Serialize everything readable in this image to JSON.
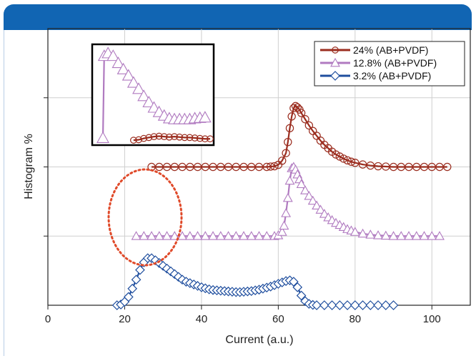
{
  "chart_data": {
    "type": "line",
    "title": "",
    "xlabel": "Current (a.u.)",
    "ylabel": "Histogram %",
    "xlim": [
      0,
      110
    ],
    "xticks": [
      "0",
      "20",
      "40",
      "60",
      "80",
      "100"
    ],
    "yticks_labeled": false,
    "grid": true,
    "legend_position": "top-right",
    "inset": true,
    "inset_position": "top-left",
    "annotation": "dotted red circle around the low-current region (x≈20–30)",
    "series": [
      {
        "name": "3.2% (AB+PVDF)",
        "color": "#1f4e9e",
        "marker": "diamond",
        "points": [
          [
            18,
            0.0
          ],
          [
            19,
            0.1
          ],
          [
            20,
            0.5
          ],
          [
            21,
            1.2
          ],
          [
            22,
            2.4
          ],
          [
            23,
            3.7
          ],
          [
            24,
            5.1
          ],
          [
            25,
            6.2
          ],
          [
            26,
            6.8
          ],
          [
            27,
            6.8
          ],
          [
            28,
            6.5
          ],
          [
            29,
            6.1
          ],
          [
            30,
            5.7
          ],
          [
            31,
            5.3
          ],
          [
            32,
            4.9
          ],
          [
            33,
            4.5
          ],
          [
            34,
            4.1
          ],
          [
            35,
            3.7
          ],
          [
            36,
            3.4
          ],
          [
            37,
            3.2
          ],
          [
            38,
            3.0
          ],
          [
            39,
            2.8
          ],
          [
            40,
            2.6
          ],
          [
            41,
            2.45
          ],
          [
            42,
            2.3
          ],
          [
            43,
            2.2
          ],
          [
            44,
            2.15
          ],
          [
            45,
            2.1
          ],
          [
            46,
            2.05
          ],
          [
            47,
            2.0
          ],
          [
            48,
            1.95
          ],
          [
            49,
            1.9
          ],
          [
            50,
            1.9
          ],
          [
            51,
            1.95
          ],
          [
            52,
            2.0
          ],
          [
            53,
            2.05
          ],
          [
            54,
            2.15
          ],
          [
            55,
            2.25
          ],
          [
            56,
            2.4
          ],
          [
            57,
            2.55
          ],
          [
            58,
            2.7
          ],
          [
            59,
            2.9
          ],
          [
            60,
            3.1
          ],
          [
            61,
            3.3
          ],
          [
            62,
            3.5
          ],
          [
            63,
            3.6
          ],
          [
            64,
            3.4
          ],
          [
            65,
            2.6
          ],
          [
            66,
            1.4
          ],
          [
            67,
            0.6
          ],
          [
            68,
            0.2
          ],
          [
            69,
            0.05
          ],
          [
            70,
            0.0
          ],
          [
            72,
            0.0
          ],
          [
            74,
            0.0
          ],
          [
            76,
            0.0
          ],
          [
            78,
            0.0
          ],
          [
            80,
            0.0
          ],
          [
            82,
            0.0
          ],
          [
            84,
            0.0
          ],
          [
            86,
            0.0
          ],
          [
            88,
            0.0
          ],
          [
            90,
            0.0
          ]
        ]
      },
      {
        "name": "12.8% (AB+PVDF)",
        "color": "#b07ac0",
        "marker": "triangle",
        "points": [
          [
            23,
            10.0
          ],
          [
            25,
            10.0
          ],
          [
            27,
            10.0
          ],
          [
            29,
            10.0
          ],
          [
            31,
            10.0
          ],
          [
            33,
            10.0
          ],
          [
            35,
            10.0
          ],
          [
            37,
            10.0
          ],
          [
            39,
            10.0
          ],
          [
            41,
            10.0
          ],
          [
            43,
            10.0
          ],
          [
            45,
            10.0
          ],
          [
            47,
            10.0
          ],
          [
            49,
            10.0
          ],
          [
            51,
            10.0
          ],
          [
            53,
            10.0
          ],
          [
            55,
            10.0
          ],
          [
            57,
            10.0
          ],
          [
            59,
            10.0
          ],
          [
            60,
            10.1
          ],
          [
            61,
            10.6
          ],
          [
            61.5,
            11.5
          ],
          [
            62,
            13.3
          ],
          [
            62.5,
            15.5
          ],
          [
            63,
            18.0
          ],
          [
            63.5,
            19.8
          ],
          [
            64,
            20.0
          ],
          [
            64.5,
            19.6
          ],
          [
            65,
            18.9
          ],
          [
            65.5,
            18.2
          ],
          [
            66,
            17.5
          ],
          [
            67,
            16.6
          ],
          [
            68,
            15.8
          ],
          [
            69,
            15.1
          ],
          [
            70,
            14.4
          ],
          [
            71,
            13.8
          ],
          [
            72,
            13.2
          ],
          [
            73,
            12.7
          ],
          [
            74,
            12.3
          ],
          [
            75,
            11.9
          ],
          [
            76,
            11.6
          ],
          [
            77,
            11.3
          ],
          [
            78,
            11.0
          ],
          [
            79,
            10.8
          ],
          [
            80,
            10.6
          ],
          [
            82,
            10.35
          ],
          [
            84,
            10.2
          ],
          [
            86,
            10.1
          ],
          [
            88,
            10.05
          ],
          [
            90,
            10.0
          ],
          [
            92,
            10.0
          ],
          [
            94,
            10.0
          ],
          [
            96,
            10.0
          ],
          [
            98,
            10.0
          ],
          [
            100,
            10.0
          ],
          [
            102,
            10.0
          ]
        ]
      },
      {
        "name": "24% (AB+PVDF)",
        "color": "#9b2d1f",
        "marker": "circle",
        "points": [
          [
            27,
            20.0
          ],
          [
            29,
            20.0
          ],
          [
            31,
            20.0
          ],
          [
            33,
            20.0
          ],
          [
            35,
            20.0
          ],
          [
            37,
            20.0
          ],
          [
            39,
            20.0
          ],
          [
            41,
            20.0
          ],
          [
            43,
            20.0
          ],
          [
            45,
            20.0
          ],
          [
            47,
            20.0
          ],
          [
            49,
            20.0
          ],
          [
            51,
            20.0
          ],
          [
            53,
            20.0
          ],
          [
            55,
            20.0
          ],
          [
            57,
            20.0
          ],
          [
            58,
            20.05
          ],
          [
            59,
            20.1
          ],
          [
            60,
            20.3
          ],
          [
            61,
            20.9
          ],
          [
            62,
            22.0
          ],
          [
            62.5,
            23.6
          ],
          [
            63,
            25.6
          ],
          [
            63.5,
            27.3
          ],
          [
            64,
            28.5
          ],
          [
            64.5,
            28.8
          ],
          [
            65,
            28.6
          ],
          [
            65.5,
            28.3
          ],
          [
            66,
            27.8
          ],
          [
            67,
            26.9
          ],
          [
            68,
            26.0
          ],
          [
            69,
            25.2
          ],
          [
            70,
            24.5
          ],
          [
            71,
            23.8
          ],
          [
            72,
            23.2
          ],
          [
            73,
            22.7
          ],
          [
            74,
            22.2
          ],
          [
            75,
            21.8
          ],
          [
            76,
            21.5
          ],
          [
            77,
            21.2
          ],
          [
            78,
            20.95
          ],
          [
            79,
            20.75
          ],
          [
            80,
            20.6
          ],
          [
            82,
            20.35
          ],
          [
            84,
            20.2
          ],
          [
            86,
            20.1
          ],
          [
            88,
            20.05
          ],
          [
            90,
            20.0
          ],
          [
            92,
            20.0
          ],
          [
            94,
            20.0
          ],
          [
            96,
            20.0
          ],
          [
            98,
            20.0
          ],
          [
            100,
            20.0
          ],
          [
            102,
            20.0
          ],
          [
            104,
            20.0
          ]
        ]
      }
    ],
    "inset_series": [
      {
        "name": "12.8% (AB+PVDF)",
        "points": [
          [
            20,
            0.4
          ],
          [
            20.5,
            9.6
          ],
          [
            22,
            9.9
          ],
          [
            24,
            9.6
          ],
          [
            26,
            8.8
          ],
          [
            28,
            8.1
          ],
          [
            30,
            7.4
          ],
          [
            32,
            6.6
          ],
          [
            34,
            5.9
          ],
          [
            36,
            5.1
          ],
          [
            38,
            4.4
          ],
          [
            40,
            3.8
          ],
          [
            42,
            3.3
          ],
          [
            44,
            2.9
          ],
          [
            46,
            2.6
          ],
          [
            48,
            2.5
          ],
          [
            50,
            2.5
          ],
          [
            52,
            2.5
          ],
          [
            54,
            2.5
          ],
          [
            56,
            2.6
          ],
          [
            58,
            2.65
          ],
          [
            60,
            2.7
          ]
        ]
      },
      {
        "name": "24% (AB+PVDF)",
        "points": [
          [
            32,
            0.15
          ],
          [
            34,
            0.2
          ],
          [
            36,
            0.35
          ],
          [
            38,
            0.45
          ],
          [
            40,
            0.55
          ],
          [
            42,
            0.6
          ],
          [
            44,
            0.55
          ],
          [
            46,
            0.5
          ],
          [
            48,
            0.55
          ],
          [
            50,
            0.5
          ],
          [
            52,
            0.45
          ],
          [
            54,
            0.45
          ],
          [
            56,
            0.4
          ],
          [
            58,
            0.35
          ],
          [
            60,
            0.3
          ],
          [
            62,
            0.3
          ]
        ]
      }
    ]
  }
}
